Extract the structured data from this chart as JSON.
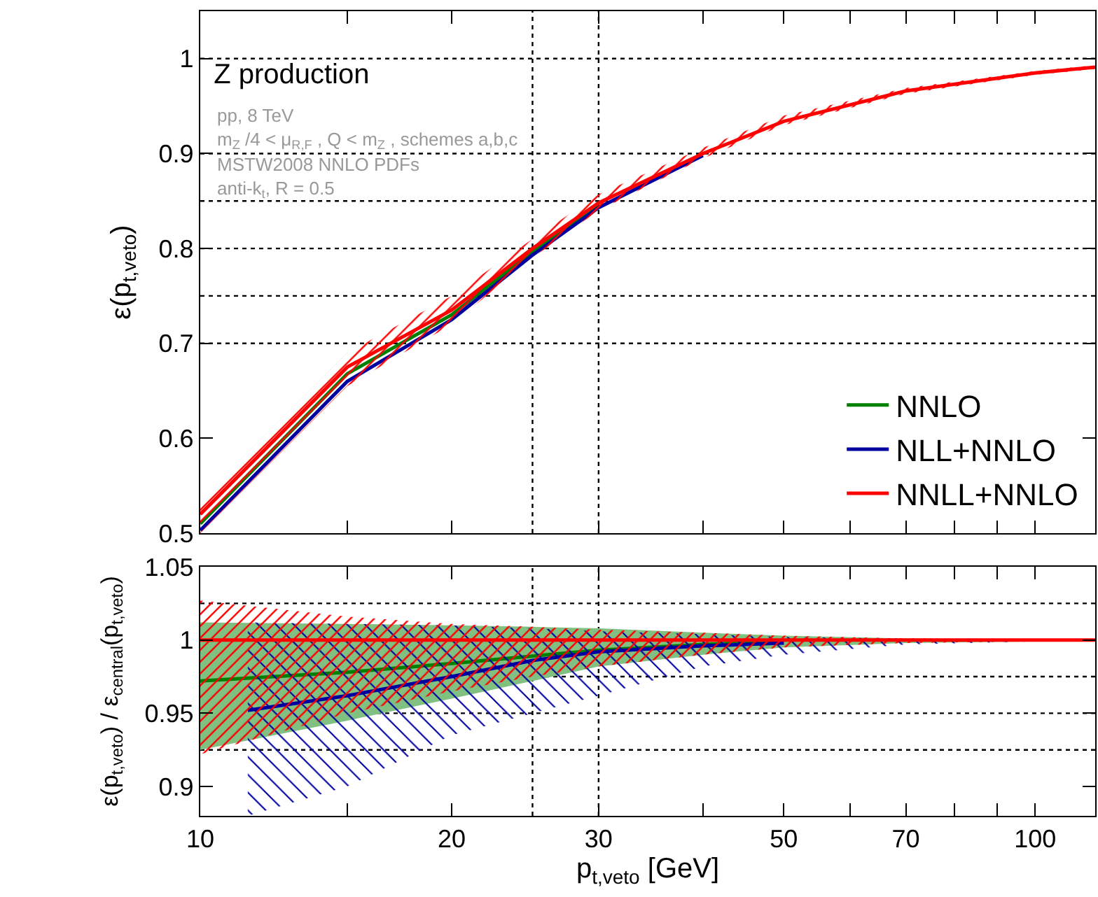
{
  "chart_data": [
    {
      "type": "line",
      "title": "Z production",
      "ylabel": "ε(p$_{t,veto}$)",
      "annotations": [
        "pp, 8 TeV",
        "m$_{Z}$ /4 < μ$_{R,F}$ , Q < m$_{Z}$ , schemes a,b,c",
        "MSTW2008 NNLO PDFs",
        "anti-k$_{t}$, R = 0.5"
      ],
      "x": [
        10,
        15,
        20,
        25,
        30,
        40,
        50,
        70,
        100,
        118
      ],
      "series": [
        {
          "name": "NNLO",
          "color": "#008000",
          "values": [
            0.51,
            0.668,
            0.73,
            0.797,
            0.846,
            null,
            null,
            null,
            null,
            null
          ]
        },
        {
          "name": "NLL+NNLO",
          "color": "#0000a0",
          "values": [
            0.503,
            0.66,
            0.725,
            0.793,
            0.843,
            0.898,
            null,
            null,
            null,
            null
          ]
        },
        {
          "name": "NNLL+NNLO",
          "color": "#ff0000",
          "values": [
            0.52,
            0.675,
            0.735,
            0.8,
            0.848,
            0.9,
            0.934,
            0.966,
            0.985,
            0.991
          ],
          "lower": [
            0.5,
            0.655,
            0.72,
            0.79,
            0.84,
            0.895,
            0.93,
            0.963,
            0.983,
            0.989
          ],
          "upper": [
            0.535,
            0.69,
            0.75,
            0.81,
            0.857,
            0.906,
            0.94,
            0.969,
            0.987,
            0.993
          ]
        }
      ],
      "log": "x",
      "xlim": [
        10,
        118
      ],
      "ylim": [
        0.5,
        1.05
      ],
      "xticks": [
        10,
        {
          "value": 15,
          "label": null
        },
        20,
        30,
        {
          "value": 40,
          "label": null
        },
        50,
        {
          "value": 60,
          "label": null
        },
        70,
        {
          "value": 80,
          "label": null
        },
        {
          "value": 90,
          "label": null
        },
        100
      ],
      "yticks": [
        0.5,
        0.6,
        0.7,
        0.8,
        0.9,
        1
      ],
      "tick_labels": "y",
      "legend": "bottom right",
      "line_style": "solid",
      "ref_lines": [
        {
          "axis": "x",
          "value": 25,
          "color": "#000000",
          "line_style": "dotted"
        },
        {
          "axis": "x",
          "value": 30,
          "color": "#000000",
          "line_style": "dotted"
        },
        {
          "axis": "y",
          "value": 1,
          "color": "#000000",
          "line_style": "dotted"
        },
        {
          "axis": "y",
          "value": 0.9,
          "color": "#000000",
          "line_style": "dotted"
        },
        {
          "axis": "y",
          "value": 0.85,
          "color": "#000000",
          "line_style": "dotted"
        },
        {
          "axis": "y",
          "value": 0.8,
          "color": "#000000",
          "line_style": "dotted"
        },
        {
          "axis": "y",
          "value": 0.75,
          "color": "#000000",
          "line_style": "dotted"
        },
        {
          "axis": "y",
          "value": 0.7,
          "color": "#000000",
          "line_style": "dotted"
        }
      ]
    },
    {
      "type": "line",
      "xlabel": "p$_{t,veto}$ [GeV]",
      "ylabel": "ε(p$_{t,veto}$) / ε$_{central}$(p$_{t,veto}$)",
      "x": [
        10,
        15,
        20,
        25,
        30,
        40,
        50,
        70,
        100,
        118
      ],
      "series": [
        {
          "color": "#008000",
          "values": [
            0.972,
            0.978,
            0.984,
            0.989,
            0.993,
            0.997,
            0.999,
            null,
            null,
            null
          ],
          "lower": [
            0.925,
            0.945,
            0.96,
            0.972,
            0.982,
            0.99,
            0.995,
            0.998,
            0.999,
            1
          ],
          "upper": [
            1.012,
            1.011,
            1.01,
            1.009,
            1.008,
            1.005,
            1.003,
            1.001,
            1.0005,
            1
          ]
        },
        {
          "color": "#0000a0",
          "x": [
            11.4,
            15,
            20,
            25,
            30,
            40,
            50,
            70,
            100,
            118
          ],
          "values": [
            0.952,
            0.962,
            0.975,
            0.986,
            0.992,
            0.996,
            0.998,
            null,
            null,
            null
          ],
          "lower": [
            0.88,
            0.9,
            0.935,
            0.95,
            0.962,
            0.982,
            0.99,
            0.997,
            0.999,
            1
          ],
          "upper": [
            1.012,
            1.011,
            1.01,
            1.008,
            1.006,
            1.004,
            1.002,
            1.001,
            1,
            1
          ]
        },
        {
          "color": "#ff0000",
          "values": [
            1,
            1,
            1,
            1,
            1,
            1,
            1,
            1,
            1,
            1
          ],
          "lower": [
            0.922,
            0.95,
            0.965,
            0.975,
            0.982,
            0.99,
            0.995,
            0.998,
            0.999,
            1
          ],
          "upper": [
            1.027,
            1.016,
            1.011,
            1.009,
            1.007,
            1.005,
            1.003,
            1.001,
            1.0005,
            1
          ]
        }
      ],
      "log": "x",
      "xlim": [
        10,
        118
      ],
      "ylim": [
        0.88,
        1.05
      ],
      "xticks": [
        10,
        {
          "value": 15,
          "label": null
        },
        20,
        30,
        {
          "value": 40,
          "label": null
        },
        50,
        {
          "value": 60,
          "label": null
        },
        70,
        {
          "value": 80,
          "label": null
        },
        {
          "value": 90,
          "label": null
        },
        100
      ],
      "yticks": [
        0.9,
        0.95,
        1,
        1.05
      ],
      "line_style": "solid",
      "ref_lines": [
        {
          "axis": "x",
          "value": 25,
          "color": "#000000",
          "line_style": "dotted"
        },
        {
          "axis": "x",
          "value": 30,
          "color": "#000000",
          "line_style": "dotted"
        },
        {
          "axis": "y",
          "value": 1.025,
          "color": "#000000",
          "line_style": "dotted"
        },
        {
          "axis": "y",
          "value": 0.975,
          "color": "#000000",
          "line_style": "dotted"
        },
        {
          "axis": "y",
          "value": 0.95,
          "color": "#000000",
          "line_style": "dotted"
        },
        {
          "axis": "y",
          "value": 0.925,
          "color": "#000000",
          "line_style": "dotted"
        }
      ]
    }
  ]
}
